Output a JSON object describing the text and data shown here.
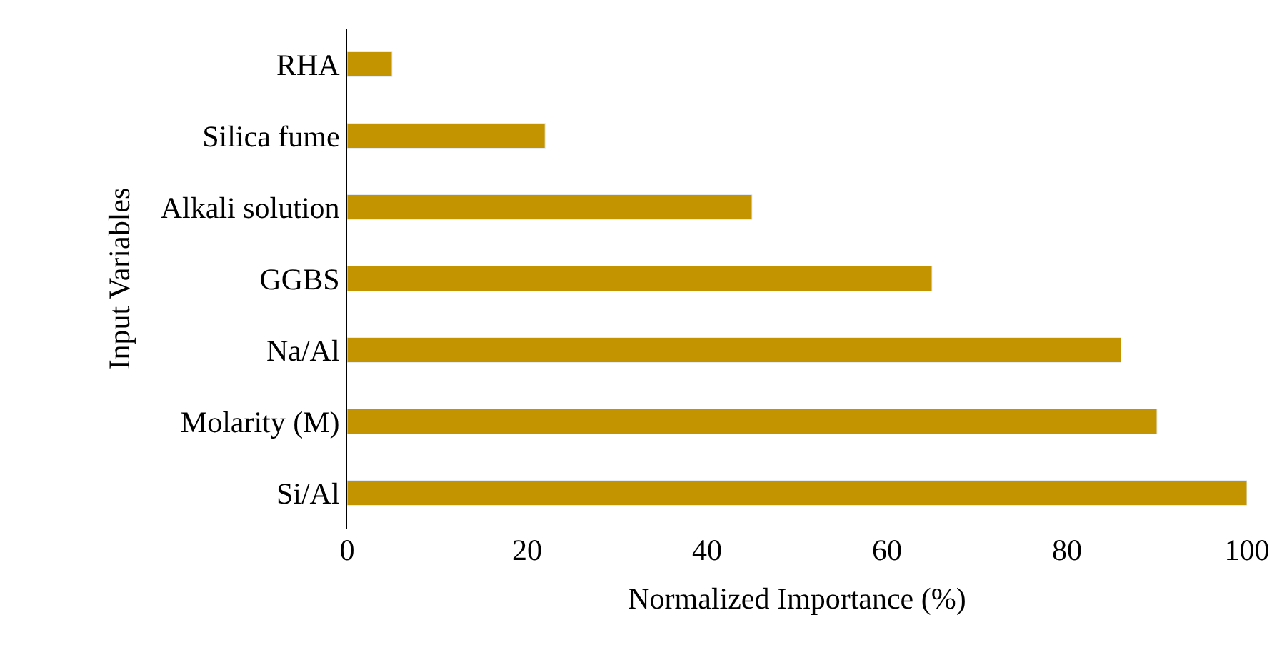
{
  "chart_data": {
    "type": "bar",
    "orientation": "horizontal",
    "xlabel": "Normalized Importance (%)",
    "ylabel": "Input Variables",
    "categories": [
      "RHA",
      "Silica fume",
      "Alkali solution",
      "GGBS",
      "Na/Al",
      "Molarity (M)",
      "Si/Al"
    ],
    "values": [
      5,
      22,
      45,
      65,
      86,
      90,
      100
    ],
    "color": "#c39400",
    "xlim": [
      0,
      100
    ],
    "xticks": [
      0,
      20,
      40,
      60,
      80,
      100
    ]
  }
}
